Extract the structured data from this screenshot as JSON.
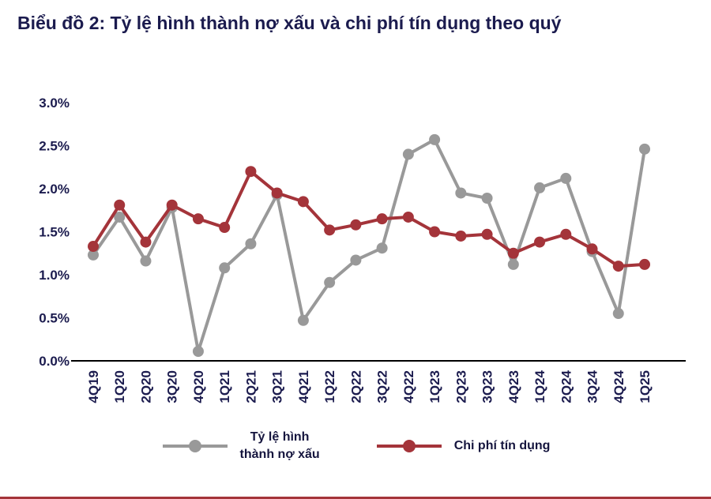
{
  "page": {
    "title": "Biểu đồ 2: Tỷ lệ hình thành nợ xấu và chi phí tín dụng theo quý"
  },
  "colors": {
    "title_text": "#1B1B4E",
    "axis_text": "#1B1B4E",
    "axis_line": "#000000",
    "series_gray": "#999999",
    "series_red": "#A4343A",
    "bottom_rule": "#A4343A",
    "background": "#FFFFFF"
  },
  "chart_data": {
    "type": "line",
    "title": "Biểu đồ 2: Tỷ lệ hình thành nợ xấu và chi phí tín dụng theo quý",
    "xlabel": "",
    "ylabel": "",
    "grid": false,
    "legend_position": "bottom",
    "ylim": [
      0,
      3.0
    ],
    "ytick_step": 0.5,
    "ytick_labels": [
      "0.0%",
      "0.5%",
      "1.0%",
      "1.5%",
      "2.0%",
      "2.5%",
      "3.0%"
    ],
    "categories": [
      "4Q19",
      "1Q20",
      "2Q20",
      "3Q20",
      "4Q20",
      "1Q21",
      "2Q21",
      "3Q21",
      "4Q21",
      "1Q22",
      "2Q22",
      "3Q22",
      "4Q22",
      "1Q23",
      "2Q23",
      "3Q23",
      "4Q23",
      "1Q24",
      "2Q24",
      "3Q24",
      "4Q24",
      "1Q25"
    ],
    "series": [
      {
        "name": "Tỷ lệ hình thành nợ xấu",
        "color": "#999999",
        "unit": "%",
        "values": [
          1.23,
          1.67,
          1.16,
          1.78,
          0.11,
          1.08,
          1.36,
          1.93,
          0.47,
          0.91,
          1.17,
          1.31,
          2.4,
          2.57,
          1.95,
          1.89,
          1.12,
          2.01,
          2.12,
          1.27,
          0.55,
          2.46
        ]
      },
      {
        "name": "Chi phí tín dụng",
        "color": "#A4343A",
        "unit": "%",
        "values": [
          1.33,
          1.81,
          1.38,
          1.81,
          1.65,
          1.55,
          2.2,
          1.95,
          1.85,
          1.52,
          1.58,
          1.65,
          1.67,
          1.5,
          1.45,
          1.47,
          1.25,
          1.38,
          1.47,
          1.3,
          1.1,
          1.12
        ]
      }
    ]
  },
  "legend": {
    "items": [
      {
        "label_lines": [
          "Tỷ lệ hình",
          "thành nợ xấu"
        ]
      },
      {
        "label_lines": [
          "Chi phí tín dụng"
        ]
      }
    ]
  }
}
